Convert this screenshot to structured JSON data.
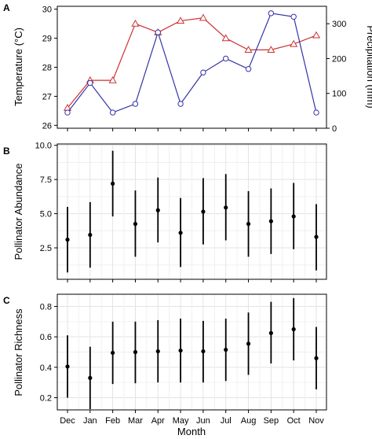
{
  "figure": {
    "x_axis_label": "Month",
    "months": [
      "Dec",
      "Jan",
      "Feb",
      "Mar",
      "Apr",
      "May",
      "Jun",
      "Jul",
      "Aug",
      "Sep",
      "Oct",
      "Nov"
    ]
  },
  "colors": {
    "temperature": "#cc3333",
    "precipitation": "#3333aa",
    "errorbar": "#000000"
  },
  "chart_data": [
    {
      "panel_label": "A",
      "type": "line",
      "categories": [
        "Dec",
        "Jan",
        "Feb",
        "Mar",
        "Apr",
        "May",
        "Jun",
        "Jul",
        "Aug",
        "Sep",
        "Oct",
        "Nov"
      ],
      "ylabel": "Temperature (°C)",
      "ylabel_right": "Precipitation (mm)",
      "ylim": [
        25.9,
        30.1
      ],
      "ylim_right": [
        0,
        350
      ],
      "yticks": [
        26,
        27,
        28,
        29,
        30
      ],
      "yticks_right": [
        0,
        100,
        200,
        300
      ],
      "series": [
        {
          "marker": "triangle",
          "axis": "left",
          "values": [
            26.6,
            27.55,
            27.55,
            29.5,
            29.2,
            29.6,
            29.7,
            29.0,
            28.6,
            28.6,
            28.8,
            29.1
          ]
        },
        {
          "marker": "circle",
          "axis": "right",
          "values": [
            45,
            130,
            45,
            70,
            275,
            70,
            160,
            200,
            170,
            330,
            320,
            45
          ]
        }
      ]
    },
    {
      "panel_label": "B",
      "type": "scatter",
      "categories": [
        "Dec",
        "Jan",
        "Feb",
        "Mar",
        "Apr",
        "May",
        "Jun",
        "Jul",
        "Aug",
        "Sep",
        "Oct",
        "Nov"
      ],
      "ylabel": "Pollinator Abundance",
      "ylim": [
        0.2,
        10.1
      ],
      "yticks": [
        2.5,
        5.0,
        7.5,
        10.0
      ],
      "ytick_labels": [
        "2.5",
        "5.0",
        "7.5",
        "10.0"
      ],
      "grid": true,
      "values": [
        3.1,
        3.45,
        7.2,
        4.25,
        5.25,
        3.6,
        5.15,
        5.45,
        4.25,
        4.45,
        4.8,
        3.3
      ],
      "lower": [
        0.7,
        1.05,
        4.8,
        1.85,
        2.9,
        1.1,
        2.75,
        3.05,
        1.85,
        2.05,
        2.4,
        0.85
      ],
      "upper": [
        5.5,
        5.85,
        9.6,
        6.7,
        7.65,
        6.15,
        7.6,
        7.9,
        6.65,
        6.85,
        7.25,
        5.7
      ]
    },
    {
      "panel_label": "C",
      "type": "scatter",
      "categories": [
        "Dec",
        "Jan",
        "Feb",
        "Mar",
        "Apr",
        "May",
        "Jun",
        "Jul",
        "Aug",
        "Sep",
        "Oct",
        "Nov"
      ],
      "ylabel": "Pollinator Richness",
      "ylim": [
        0.12,
        0.88
      ],
      "yticks": [
        0.2,
        0.4,
        0.6,
        0.8
      ],
      "ytick_labels": [
        "0.2",
        "0.4",
        "0.6",
        "0.8"
      ],
      "grid": true,
      "values": [
        0.405,
        0.33,
        0.495,
        0.5,
        0.505,
        0.51,
        0.505,
        0.515,
        0.555,
        0.625,
        0.65,
        0.46
      ],
      "lower": [
        0.2,
        0.125,
        0.29,
        0.295,
        0.3,
        0.3,
        0.3,
        0.31,
        0.35,
        0.425,
        0.445,
        0.255
      ],
      "upper": [
        0.61,
        0.535,
        0.7,
        0.7,
        0.71,
        0.72,
        0.705,
        0.72,
        0.76,
        0.83,
        0.855,
        0.665
      ]
    }
  ]
}
